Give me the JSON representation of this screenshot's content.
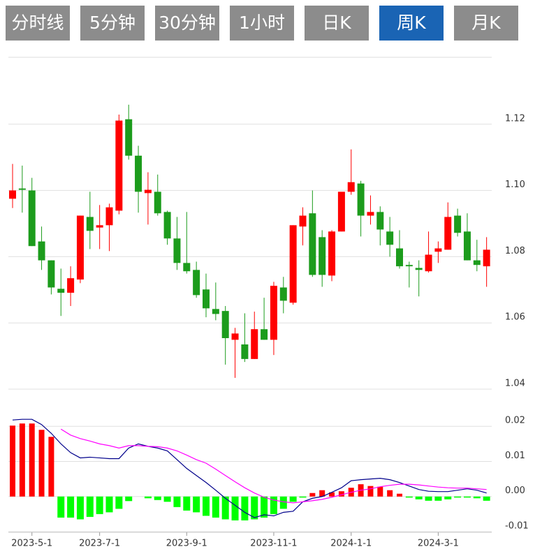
{
  "tabs": [
    "分时线",
    "5分钟",
    "30分钟",
    "1小时",
    "日K",
    "周K",
    "月K"
  ],
  "active_tab": "周K",
  "chart_data": [
    {
      "type": "candlestick",
      "up_color": "#ff0000",
      "down_color": "#1c9c1c",
      "ylim": [
        1.04,
        1.14
      ],
      "yticks": [
        1.04,
        1.06,
        1.08,
        {
          "value": 1.1,
          "label": "1.10"
        },
        1.12
      ],
      "grid": true,
      "open": [
        1.0975,
        1.1006,
        1.1,
        1.0846,
        1.0789,
        1.0703,
        1.0691,
        1.0731,
        1.092,
        1.0888,
        1.0895,
        1.0939,
        1.1215,
        1.1105,
        1.0992,
        1.0996,
        1.0935,
        1.0855,
        1.0781,
        1.076,
        1.0701,
        1.0642,
        1.0636,
        1.0549,
        1.0535,
        1.0491,
        1.0581,
        1.0549,
        1.0707,
        1.0661,
        1.0891,
        1.0931,
        1.0859,
        1.0743,
        1.0876,
        1.0996,
        1.1021,
        1.0924,
        1.0935,
        1.0876,
        1.0825,
        1.0775,
        1.0766,
        1.0756,
        1.0815,
        1.0821,
        1.0924,
        1.0876,
        1.0789,
        1.0771
      ],
      "high": [
        1.108,
        1.1075,
        1.1038,
        1.0891,
        1.0789,
        1.0764,
        1.0771,
        1.0924,
        1.0996,
        1.0956,
        1.096,
        1.1229,
        1.1259,
        1.1135,
        1.1055,
        1.1048,
        1.0939,
        1.092,
        1.0935,
        1.0785,
        1.0749,
        1.0722,
        1.0651,
        1.0585,
        1.0629,
        1.0634,
        1.0676,
        1.0724,
        1.0739,
        1.0895,
        1.0949,
        1.1,
        1.088,
        1.088,
        1.0996,
        1.1124,
        1.1029,
        1.0985,
        1.0952,
        1.092,
        1.088,
        1.0785,
        1.0789,
        1.0876,
        1.0846,
        1.0964,
        1.0945,
        1.0931,
        1.0851,
        1.0859
      ],
      "low": [
        1.0947,
        1.0933,
        1.0832,
        1.076,
        1.0686,
        1.0621,
        1.0651,
        1.072,
        1.0823,
        1.0823,
        1.0817,
        1.0928,
        1.1093,
        1.0933,
        1.0897,
        1.0924,
        1.0836,
        1.076,
        1.0749,
        1.0676,
        1.0617,
        1.0608,
        1.0474,
        1.0434,
        1.0482,
        1.0491,
        1.0549,
        1.0503,
        1.0629,
        1.0655,
        1.0834,
        1.0739,
        1.0709,
        1.0726,
        1.0876,
        1.0987,
        1.0861,
        1.0897,
        1.0834,
        1.08,
        1.0764,
        1.0707,
        1.068,
        1.0752,
        1.0781,
        1.0821,
        1.0861,
        1.0789,
        1.0756,
        1.0709
      ],
      "close": [
        1.1,
        1.1002,
        1.0832,
        1.0789,
        1.0707,
        1.0691,
        1.0735,
        1.0924,
        1.0878,
        1.0895,
        1.0949,
        1.1211,
        1.1105,
        1.0996,
        1.1002,
        1.0931,
        1.0855,
        1.0781,
        1.0756,
        1.0684,
        1.0644,
        1.0627,
        1.0554,
        1.0568,
        1.0491,
        1.0581,
        1.0549,
        1.0712,
        1.0667,
        1.0895,
        1.0924,
        1.0745,
        1.0745,
        1.0876,
        1.0996,
        1.1025,
        1.0924,
        1.0935,
        1.0882,
        1.0836,
        1.0771,
        1.0771,
        1.076,
        1.0806,
        1.0825,
        1.092,
        1.0872,
        1.0789,
        1.0775,
        1.0821
      ]
    },
    {
      "type": "macd",
      "ylim": [
        -0.0102,
        0.029
      ],
      "yticks": [
        -0.01,
        {
          "value": 0,
          "label": "0.00"
        },
        0.01,
        0.02
      ],
      "grid": true,
      "categories": [
        null,
        null,
        "2023-5-1",
        null,
        null,
        null,
        null,
        null,
        null,
        "2023-7-1",
        null,
        null,
        null,
        null,
        null,
        null,
        null,
        null,
        "2023-9-1",
        null,
        null,
        null,
        null,
        null,
        null,
        null,
        null,
        "2023-11-1",
        null,
        null,
        null,
        null,
        null,
        null,
        null,
        "2024-1-1",
        null,
        null,
        null,
        null,
        null,
        null,
        null,
        null,
        "2024-3-1",
        null,
        null,
        null,
        null,
        null
      ],
      "histogram": {
        "up_color": "#ff0000",
        "down_color": "#00ff00",
        "values": [
          0.0202,
          0.0208,
          0.0208,
          0.019,
          0.017,
          -0.006,
          -0.006,
          -0.0065,
          -0.0058,
          -0.005,
          -0.0045,
          -0.0035,
          -0.0013,
          0,
          -0.0005,
          -0.001,
          -0.0015,
          -0.003,
          -0.004,
          -0.0045,
          -0.0055,
          -0.006,
          -0.0065,
          -0.0068,
          -0.0068,
          -0.0065,
          -0.006,
          -0.005,
          -0.0035,
          -0.0015,
          -0.0003,
          0.001,
          0.0018,
          0.0012,
          0.0015,
          0.0025,
          0.0035,
          0.003,
          0.0028,
          0.0018,
          0.0008,
          -0.0003,
          -0.0008,
          -0.0012,
          -0.0012,
          -0.0008,
          -0.0003,
          -0.0003,
          -0.0005,
          -0.0012
        ]
      },
      "lines": [
        {
          "color": "#00008b",
          "values": [
            0.0218,
            0.022,
            0.022,
            0.0205,
            0.018,
            0.015,
            0.0125,
            0.011,
            0.0112,
            0.011,
            0.0108,
            0.0108,
            0.0138,
            0.015,
            0.0143,
            0.0138,
            0.013,
            0.0105,
            0.008,
            0.006,
            0.004,
            0.0018,
            -0.0005,
            -0.0025,
            -0.0045,
            -0.006,
            -0.0052,
            -0.0055,
            -0.0045,
            -0.0042,
            -0.0015,
            -0.0005,
            0,
            0.0012,
            0.0025,
            0.0045,
            0.0048,
            0.005,
            0.0052,
            0.0048,
            0.004,
            0.003,
            0.002,
            0.0015,
            0.0014,
            0.0014,
            0.0018,
            0.0022,
            0.0018,
            0.001
          ]
        },
        {
          "color": "#ff00ff",
          "values": [
            null,
            null,
            null,
            null,
            null,
            0.0192,
            0.0175,
            0.0165,
            0.0158,
            0.015,
            0.0145,
            0.0138,
            0.0145,
            0.0145,
            0.0143,
            0.0142,
            0.0138,
            0.013,
            0.0118,
            0.0105,
            0.0095,
            0.0078,
            0.006,
            0.0042,
            0.0025,
            0.001,
            -0.0002,
            -0.001,
            -0.0015,
            -0.0018,
            -0.0015,
            -0.0012,
            -0.0008,
            -0.0002,
            0.0005,
            0.0012,
            0.0018,
            0.0022,
            0.0028,
            0.0032,
            0.0035,
            0.0035,
            0.0033,
            0.003,
            0.0027,
            0.0025,
            0.0024,
            0.0024,
            0.0022,
            0.002
          ]
        }
      ]
    }
  ]
}
